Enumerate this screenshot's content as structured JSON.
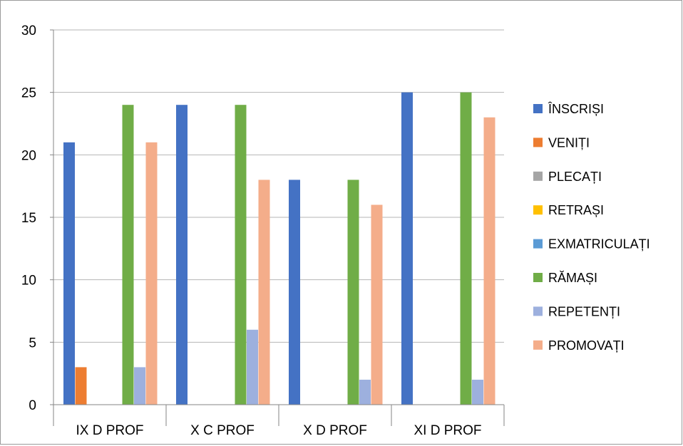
{
  "chart_data": {
    "type": "bar",
    "title": "",
    "xlabel": "",
    "ylabel": "",
    "ylim": [
      0,
      30
    ],
    "yticks": [
      0,
      5,
      10,
      15,
      20,
      25,
      30
    ],
    "grid": true,
    "legend_position": "right",
    "categories": [
      "IX  D PROF",
      "X  C PROF",
      "X D PROF",
      "XI D PROF"
    ],
    "series": [
      {
        "name": "ÎNSCRIȘI",
        "color": "#4472C4",
        "values": [
          21,
          24,
          18,
          25
        ]
      },
      {
        "name": "VENIȚI",
        "color": "#ED7D31",
        "values": [
          3,
          0,
          0,
          0
        ]
      },
      {
        "name": "PLECAȚI",
        "color": "#A5A5A5",
        "values": [
          0,
          0,
          0,
          0
        ]
      },
      {
        "name": "RETRAȘI",
        "color": "#FFC000",
        "values": [
          0,
          0,
          0,
          0
        ]
      },
      {
        "name": "EXMATRICULAȚI",
        "color": "#5B9BD5",
        "values": [
          0,
          0,
          0,
          0
        ]
      },
      {
        "name": "RĂMAȘI",
        "color": "#70AD47",
        "values": [
          24,
          24,
          18,
          25
        ]
      },
      {
        "name": "REPETENȚI",
        "color": "#9DB0DE",
        "values": [
          3,
          6,
          2,
          2
        ]
      },
      {
        "name": "PROMOVAȚI",
        "color": "#F4AD8A",
        "values": [
          21,
          18,
          16,
          23
        ]
      }
    ]
  }
}
